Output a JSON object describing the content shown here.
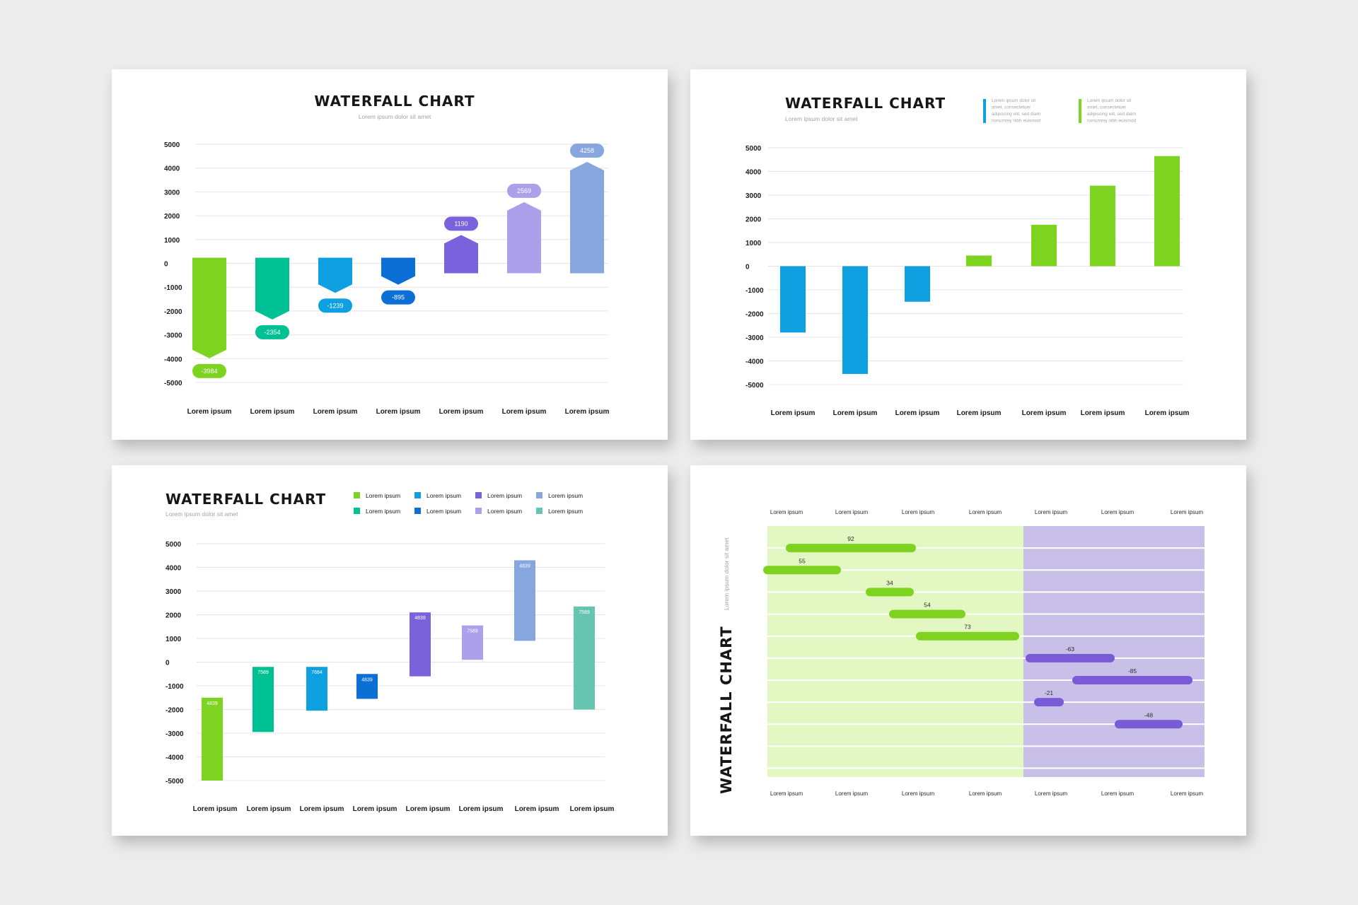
{
  "chart_data": [
    {
      "type": "bar",
      "title": "WATERFALL CHART",
      "subtitle": "Lorem ipsum dolor sit amet",
      "categories": [
        "Lorem ipsum",
        "Lorem ipsum",
        "Lorem ipsum",
        "Lorem ipsum",
        "Lorem ipsum",
        "Lorem ipsum",
        "Lorem ipsum"
      ],
      "values": [
        -3984,
        -2354,
        -1239,
        -895,
        1190,
        2569,
        4258
      ],
      "data_labels": [
        "-3984",
        "-2354",
        "-1239",
        "-895",
        "1190",
        "2569",
        "4258"
      ],
      "colors": [
        "#7ed321",
        "#00c193",
        "#0ea0e0",
        "#0b6fd6",
        "#7a62dc",
        "#ada0ea",
        "#86a6dd"
      ],
      "ylim": [
        -5000,
        5000
      ],
      "yticks": [
        "5000",
        "4000",
        "3000",
        "2000",
        "1000",
        "0",
        "-1000",
        "-2000",
        "-3000",
        "-4000",
        "-5000"
      ],
      "grid": true
    },
    {
      "type": "bar",
      "title": "WATERFALL CHART",
      "subtitle": "Lorem ipsum dolor sit amet",
      "categories": [
        "Lorem ipsum",
        "Lorem ipsum",
        "Lorem ipsum",
        "Lorem ipsum",
        "Lorem ipsum",
        "Lorem ipsum",
        "Lorem ipsum"
      ],
      "values": [
        -2800,
        -4550,
        -1500,
        450,
        1750,
        3400,
        4650
      ],
      "colors": [
        "#0ea0e0",
        "#0ea0e0",
        "#0ea0e0",
        "#7ed321",
        "#7ed321",
        "#7ed321",
        "#7ed321"
      ],
      "legend": [
        {
          "color": "#0ea0e0",
          "lines": [
            "Lorem ipsum dolor sit",
            "amet, consectetuer",
            "adipiscing elit, sed diam",
            "nonummy nibh euismod"
          ]
        },
        {
          "color": "#7ed321",
          "lines": [
            "Lorem ipsum dolor sit",
            "amet, consectetuer",
            "adipiscing elit, sed diam",
            "nonummy nibh euismod"
          ]
        }
      ],
      "ylim": [
        -5000,
        5000
      ],
      "yticks": [
        "5000",
        "4000",
        "3000",
        "2000",
        "1000",
        "0",
        "-1000",
        "-2000",
        "-3000",
        "-4000",
        "-5000"
      ],
      "grid": true
    },
    {
      "type": "bar",
      "title": "WATERFALL CHART",
      "subtitle": "Lorem ipsum dolor sit amet",
      "categories": [
        "Lorem ipsum",
        "Lorem ipsum",
        "Lorem ipsum",
        "Lorem ipsum",
        "Lorem ipsum",
        "Lorem ipsum",
        "Lorem ipsum",
        "Lorem ipsum"
      ],
      "ranges": [
        [
          -5000,
          -1500
        ],
        [
          -2950,
          -200
        ],
        [
          -2050,
          -200
        ],
        [
          -1550,
          -500
        ],
        [
          -600,
          2100
        ],
        [
          100,
          1550
        ],
        [
          900,
          4300
        ],
        [
          -2000,
          2350
        ]
      ],
      "data_labels": [
        "4839",
        "7589",
        "7684",
        "4839",
        "4839",
        "7589",
        "4839",
        "7589"
      ],
      "colors": [
        "#7ed321",
        "#00c193",
        "#0ea0e0",
        "#0b6fd6",
        "#7a62dc",
        "#ada0ea",
        "#86a6dd",
        "#66c5b0"
      ],
      "legend": [
        {
          "color": "#7ed321",
          "label": "Lorem ipsum"
        },
        {
          "color": "#0ea0e0",
          "label": "Lorem ipsum"
        },
        {
          "color": "#7a62dc",
          "label": "Lorem ipsum"
        },
        {
          "color": "#86a6dd",
          "label": "Lorem ipsum"
        },
        {
          "color": "#00c193",
          "label": "Lorem ipsum"
        },
        {
          "color": "#0b6fd6",
          "label": "Lorem ipsum"
        },
        {
          "color": "#ada0ea",
          "label": "Lorem ipsum"
        },
        {
          "color": "#66c5b0",
          "label": "Lorem ipsum"
        }
      ],
      "ylim": [
        -5000,
        5000
      ],
      "yticks": [
        "5000",
        "4000",
        "3000",
        "2000",
        "1000",
        "0",
        "-1000",
        "-2000",
        "-3000",
        "-4000",
        "-5000"
      ],
      "grid": true
    },
    {
      "type": "bar",
      "orientation": "horizontal",
      "title": "WATERFALL CHART",
      "subtitle": "Lorem ipsum dolor sit amet",
      "xticks": [
        "Lorem ipsum",
        "Lorem ipsum",
        "Lorem ipsum",
        "Lorem ipsum",
        "Lorem ipsum",
        "Lorem ipsum",
        "Lorem ipsum"
      ],
      "values": [
        92,
        55,
        34,
        54,
        73,
        -63,
        -85,
        -21,
        -48
      ],
      "data_labels": [
        "92",
        "55",
        "34",
        "54",
        "73",
        "-63",
        "-85",
        "-21",
        "-48"
      ],
      "colors": {
        "positive": "#7ed321",
        "negative": "#7a5bd6",
        "positive_bg": "#e3f7c2",
        "negative_bg": "#c9c0ea"
      }
    }
  ]
}
